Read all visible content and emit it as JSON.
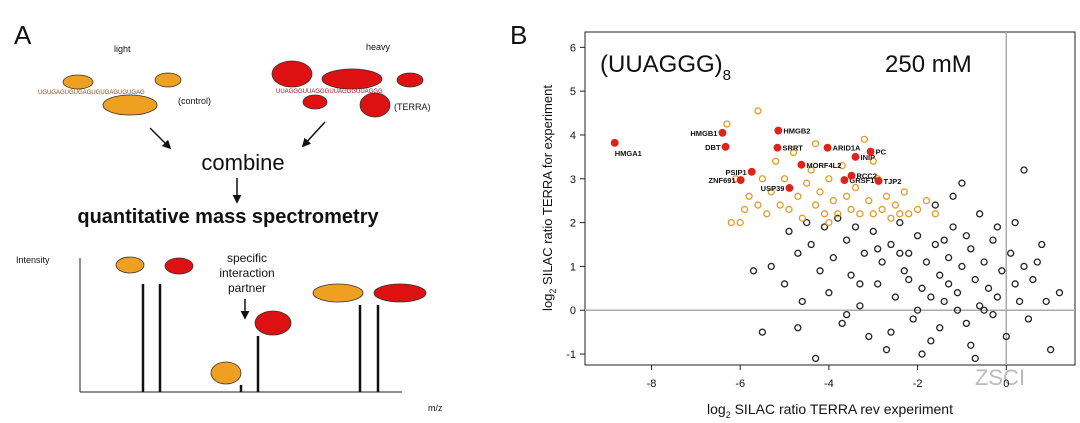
{
  "panel_a": {
    "label": "A",
    "light": "light",
    "heavy": "heavy",
    "light_sequence": "UGUGAGUGUGAGUGUGAGUGUGAG",
    "heavy_sequence": "UUAGGGUUAGGGUUAGGGUUAGGG",
    "control": "(control)",
    "terra": "(TERRA)",
    "combine": "combine",
    "method": "quantitative mass spectrometry",
    "y_axis": "Intensity",
    "callout": [
      "specific",
      "interaction",
      "partner"
    ],
    "x_axis": "m/z"
  },
  "chart_data": {
    "type": "scatter",
    "panel_label": "B",
    "title": "(UUAGGG)",
    "title_subscript": "8",
    "annotation": "250 mM",
    "xlabel": [
      "log",
      "2",
      " SILAC ratio TERRA rev experiment"
    ],
    "ylabel": [
      "log",
      "2",
      " SILAC ratio TERRA for experiment"
    ],
    "xlim": [
      -9.5,
      1.55
    ],
    "ylim": [
      -1.25,
      6.35
    ],
    "xticks": [
      -8,
      -6,
      -4,
      -2,
      0
    ],
    "yticks": [
      -1,
      0,
      1,
      2,
      3,
      4,
      5,
      6
    ],
    "reference_lines": {
      "x": 0,
      "y": 0
    },
    "series": [
      {
        "color": "#222222",
        "marker": "open",
        "x": [
          -5.5,
          -5.3,
          -5.0,
          -4.9,
          -4.7,
          -4.6,
          -4.5,
          -4.4,
          -4.3,
          -4.2,
          -4.1,
          -4.0,
          -3.9,
          -3.8,
          -3.7,
          -3.6,
          -3.5,
          -3.4,
          -3.3,
          -3.2,
          -3.1,
          -3.0,
          -2.9,
          -2.8,
          -2.7,
          -2.6,
          -2.5,
          -2.4,
          -2.3,
          -2.2,
          -2.1,
          -2.0,
          -1.9,
          -1.8,
          -1.7,
          -1.6,
          -1.5,
          -1.4,
          -1.3,
          -1.2,
          -1.1,
          -1.0,
          -0.9,
          -0.8,
          -0.7,
          -0.6,
          -0.5,
          -0.4,
          -0.3,
          -0.2,
          -0.1,
          0.0,
          0.1,
          0.2,
          0.3,
          0.4,
          0.5,
          0.6,
          0.8,
          1.0,
          1.2,
          -1.6,
          -1.2,
          -0.6,
          0.2,
          -1.0,
          0.4,
          -2.6,
          -3.6,
          -1.9,
          -0.8,
          -2.2,
          -1.4,
          -0.9,
          -1.7,
          -2.4,
          -1.1,
          -0.3,
          0.7,
          -2.9,
          -3.3,
          -4.7,
          -5.7,
          -1.5,
          -0.5,
          0.9,
          -0.2,
          -1.3,
          -2.0,
          -0.7
        ],
        "y": [
          -0.5,
          1.0,
          0.6,
          1.8,
          1.3,
          0.2,
          2.0,
          1.5,
          -1.1,
          0.9,
          1.9,
          0.4,
          1.2,
          2.1,
          -0.3,
          1.6,
          0.8,
          1.9,
          0.1,
          1.3,
          -0.6,
          1.8,
          0.6,
          1.1,
          -0.9,
          1.5,
          0.3,
          2.0,
          0.9,
          1.3,
          -0.2,
          1.7,
          0.5,
          1.1,
          -0.7,
          1.5,
          0.8,
          0.2,
          1.2,
          1.9,
          0.4,
          1.0,
          -0.3,
          1.4,
          0.7,
          0.1,
          1.1,
          0.5,
          1.6,
          0.3,
          0.9,
          -0.6,
          1.3,
          0.6,
          0.2,
          1.0,
          -0.2,
          0.7,
          1.5,
          -0.9,
          0.4,
          2.4,
          2.6,
          2.2,
          2.0,
          2.9,
          3.2,
          -0.5,
          -0.1,
          -1.0,
          -0.8,
          0.7,
          1.6,
          1.7,
          0.3,
          1.3,
          0.0,
          -0.1,
          1.1,
          1.4,
          0.6,
          -0.4,
          0.9,
          -0.4,
          0.0,
          0.2,
          1.9,
          0.6,
          0.0,
          -1.1
        ]
      },
      {
        "color": "#e39a2a",
        "marker": "open",
        "x": [
          -6.2,
          -6.0,
          -5.9,
          -6.3,
          -5.8,
          -5.6,
          -5.5,
          -5.4,
          -5.3,
          -5.2,
          -5.1,
          -5.0,
          -4.9,
          -4.8,
          -4.7,
          -4.6,
          -4.5,
          -4.4,
          -4.3,
          -4.2,
          -4.1,
          -4.0,
          -3.9,
          -3.8,
          -3.7,
          -3.6,
          -3.5,
          -3.4,
          -3.3,
          -3.2,
          -3.1,
          -3.0,
          -2.9,
          -2.8,
          -2.7,
          -2.6,
          -2.5,
          -2.4,
          -2.3,
          -2.2,
          -2.0,
          -1.8,
          -1.6,
          -5.6,
          -4.3,
          -3.0,
          -6.1,
          -4.0
        ],
        "y": [
          2.0,
          2.0,
          2.3,
          4.25,
          2.6,
          2.4,
          3.0,
          2.2,
          2.7,
          3.4,
          2.4,
          3.0,
          2.3,
          3.6,
          2.6,
          2.1,
          2.9,
          3.2,
          2.4,
          2.7,
          2.2,
          3.0,
          2.5,
          2.2,
          3.3,
          2.6,
          2.3,
          2.8,
          2.2,
          3.9,
          2.5,
          2.2,
          3.0,
          2.3,
          2.6,
          2.1,
          2.4,
          2.2,
          2.7,
          2.2,
          2.3,
          2.5,
          2.2,
          4.55,
          3.8,
          3.4,
          3.0,
          2.0
        ]
      },
      {
        "color": "#e0231a",
        "marker": "filled",
        "labels": [
          "HMGA1",
          "HMGB1",
          "DBT",
          "HMGB2",
          "SRRT",
          "ARID1A",
          "PC",
          "INIP",
          "MORF4L2",
          "PSIP1",
          "ZNF691",
          "GRSF1",
          "RCC2",
          "TJP2",
          "USP39"
        ],
        "x": [
          -8.83,
          -6.4,
          -6.33,
          -5.14,
          -5.16,
          -4.03,
          -3.06,
          -3.4,
          -4.62,
          -5.74,
          -5.99,
          -3.65,
          -3.49,
          -2.88,
          -4.89
        ],
        "y": [
          3.82,
          4.05,
          3.73,
          4.1,
          3.71,
          3.71,
          3.62,
          3.5,
          3.32,
          3.16,
          2.97,
          2.97,
          3.07,
          2.95,
          2.79
        ]
      }
    ]
  },
  "watermark": "ZSCI"
}
